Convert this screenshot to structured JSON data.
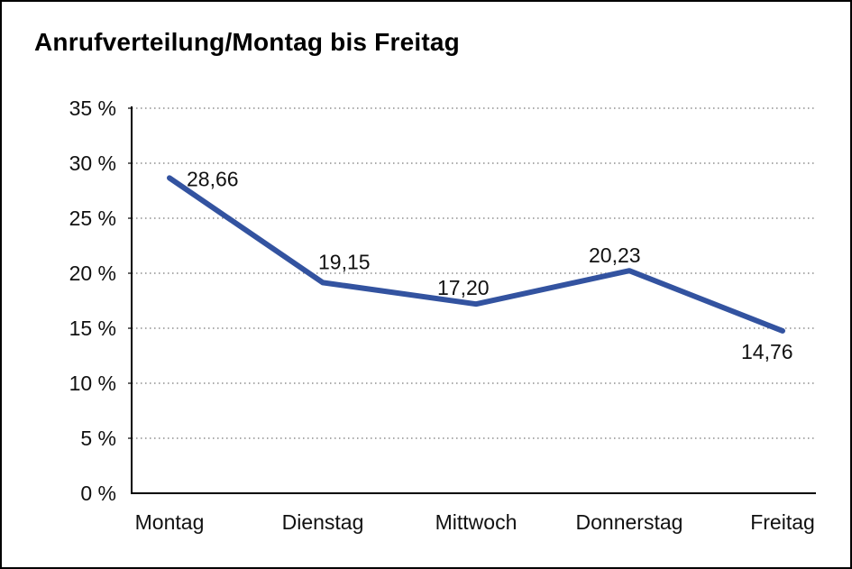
{
  "frame": {
    "background": "#ffffff",
    "border_color": "#000000"
  },
  "chart_data": {
    "type": "line",
    "title": "Anrufverteilung/Montag bis Freitag",
    "categories": [
      "Montag",
      "Dienstag",
      "Mittwoch",
      "Donnerstag",
      "Freitag"
    ],
    "series": [
      {
        "name": "Anrufverteilung",
        "values": [
          28.66,
          19.15,
          17.2,
          20.23,
          14.76
        ],
        "point_labels": [
          "28,66",
          "19,15",
          "17,20",
          "20,23",
          "14,76"
        ],
        "color": "#3353A0"
      }
    ],
    "xlabel": "",
    "ylabel": "",
    "ylim": [
      0,
      35
    ],
    "y_ticks": [
      {
        "value": 0,
        "label": "0 %"
      },
      {
        "value": 5,
        "label": "5 %"
      },
      {
        "value": 10,
        "label": "10 %"
      },
      {
        "value": 15,
        "label": "15 %"
      },
      {
        "value": 20,
        "label": "20 %"
      },
      {
        "value": 25,
        "label": "25 %"
      },
      {
        "value": 30,
        "label": "30 %"
      },
      {
        "value": 35,
        "label": "35 %"
      }
    ],
    "grid": "horizontal-dotted",
    "legend": "none",
    "grid_color": "#777777",
    "axis_color": "#000000",
    "label_color": "#111111"
  }
}
